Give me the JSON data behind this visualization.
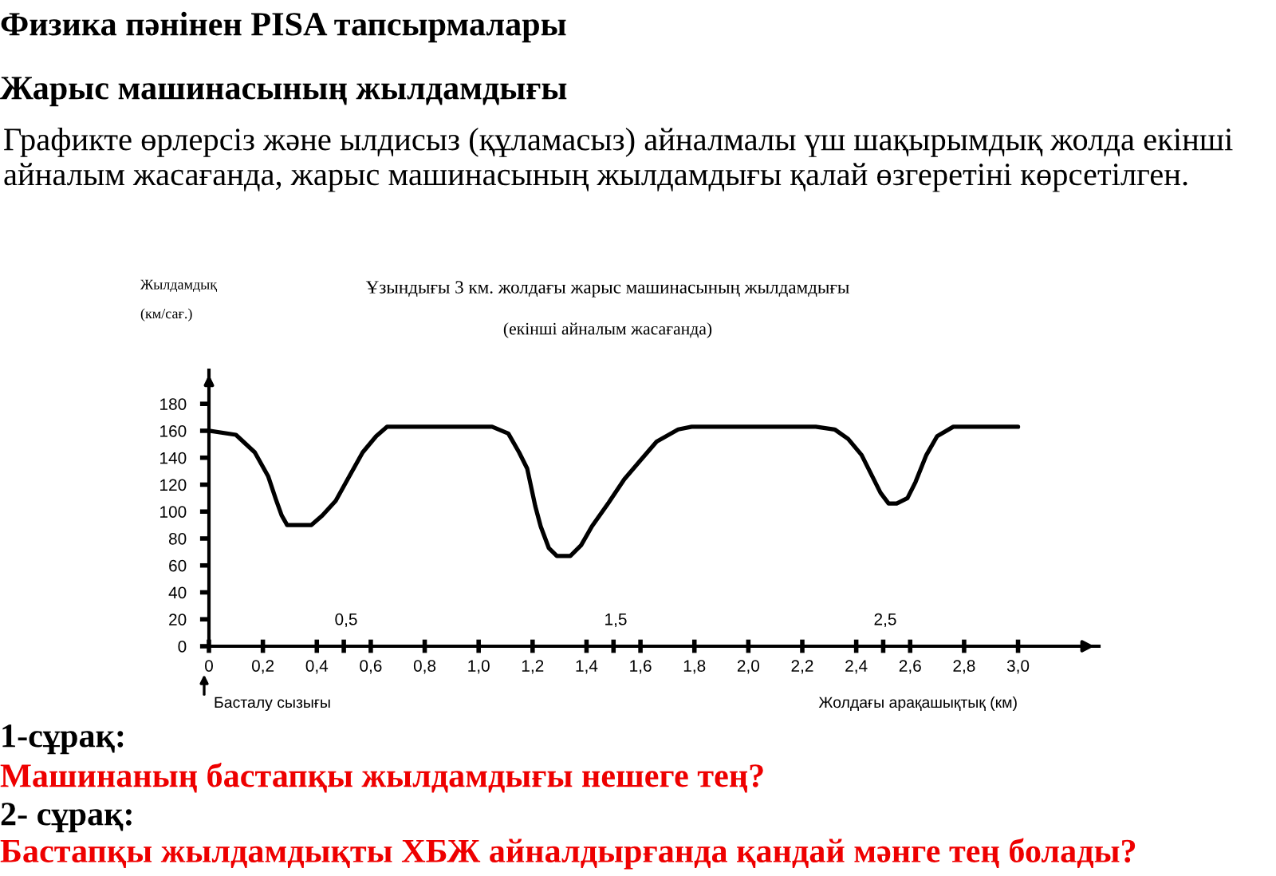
{
  "chart_data": {
    "type": "line",
    "title": "Ұзындығы 3 км. жолдағы жарыс машинасының жылдамдығы",
    "subtitle": "(екінші айналым жасағанда)",
    "xlabel": "Жолдағы арақашықтық (км)",
    "ylabel": "Жылдамдық\n(км/сағ.)",
    "x": [
      0,
      0.1,
      0.17,
      0.22,
      0.25,
      0.27,
      0.29,
      0.38,
      0.42,
      0.47,
      0.52,
      0.57,
      0.62,
      0.66,
      1.05,
      1.11,
      1.15,
      1.18,
      1.21,
      1.23,
      1.26,
      1.29,
      1.34,
      1.38,
      1.42,
      1.48,
      1.54,
      1.6,
      1.66,
      1.74,
      1.79,
      2.25,
      2.32,
      2.37,
      2.42,
      2.46,
      2.49,
      2.52,
      2.55,
      2.59,
      2.62,
      2.66,
      2.7,
      2.76,
      3.0
    ],
    "series": [
      {
        "color": "#000000",
        "values": [
          160,
          157,
          144,
          126,
          108,
          97,
          90,
          90,
          97,
          108,
          126,
          144,
          156,
          163,
          163,
          158,
          144,
          132,
          104,
          89,
          73,
          67,
          67,
          75,
          89,
          106,
          124,
          138,
          152,
          161,
          163,
          163,
          161,
          154,
          142,
          126,
          114,
          106,
          106,
          110,
          122,
          142,
          156,
          163,
          163
        ]
      }
    ],
    "xlim": [
      0,
      3.3
    ],
    "ylim": [
      0,
      205
    ],
    "xticks": [
      0,
      {
        "value": 0.2,
        "label": "0,2"
      },
      {
        "value": 0.4,
        "label": "0,4"
      },
      {
        "value": 0.5,
        "label": null
      },
      {
        "value": 0.6,
        "label": "0,6"
      },
      {
        "value": 0.8,
        "label": "0,8"
      },
      {
        "value": 1.0,
        "label": "1,0"
      },
      {
        "value": 1.2,
        "label": "1,2"
      },
      {
        "value": 1.4,
        "label": "1,4"
      },
      {
        "value": 1.5,
        "label": null
      },
      {
        "value": 1.6,
        "label": "1,6"
      },
      {
        "value": 1.8,
        "label": "1,8"
      },
      {
        "value": 2.0,
        "label": "2,0"
      },
      {
        "value": 2.2,
        "label": "2,2"
      },
      {
        "value": 2.4,
        "label": "2,4"
      },
      {
        "value": 2.5,
        "label": null
      },
      {
        "value": 2.6,
        "label": "2,6"
      },
      {
        "value": 2.8,
        "label": "2,8"
      },
      {
        "value": 3.0,
        "label": "3,0"
      }
    ],
    "yticks": [
      0,
      20,
      40,
      60,
      80,
      100,
      120,
      140,
      160,
      180
    ],
    "annotations": [
      "Физика пәнінен PISA тапсырмалары",
      "Жарыс машинасының жылдамдығы",
      "Графикте өрлерсіз және ылдисыз (құламасыз) айналмалы үш шақырымдық жолда екінші айналым жасағанда, жарыс машинасының жылдамдығы қалай өзгеретіні көрсетілген.",
      "0,5",
      "1,5",
      "2,5",
      "Басталу сызығы",
      "1-сұрақ:",
      "Машинаның бастапқы жылдамдығы нешеге тең?",
      "2- сұрақ:",
      "Бастапқы жылдамдықты ХБЖ айналдырғанда қандай мәнге тең болады?"
    ]
  }
}
